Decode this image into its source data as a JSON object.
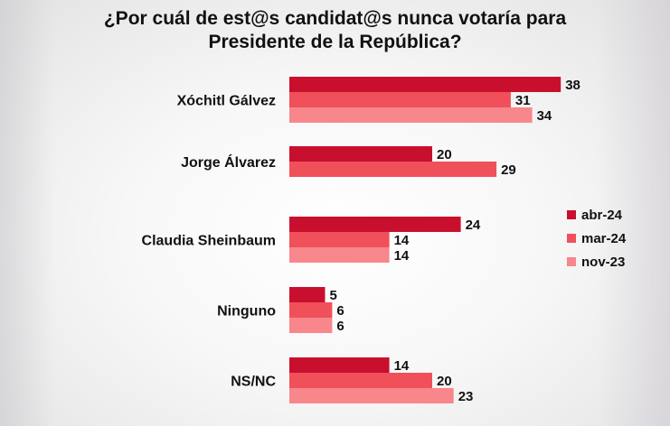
{
  "chart_data": {
    "type": "bar",
    "orientation": "horizontal",
    "title_line1": "¿Por cuál de est@s candidat@s nunca votaría para",
    "title_line2": "Presidente de la República?",
    "categories": [
      "Xóchitl Gálvez",
      "Jorge Álvarez",
      "Claudia Sheinbaum",
      "Ninguno",
      "NS/NC"
    ],
    "series": [
      {
        "name": "abr-24",
        "color": "#c8102e",
        "values": [
          38,
          20,
          24,
          5,
          14
        ]
      },
      {
        "name": "mar-24",
        "color": "#f0505a",
        "values": [
          31,
          29,
          14,
          6,
          20
        ]
      },
      {
        "name": "nov-23",
        "color": "#f8878c",
        "values": [
          34,
          null,
          14,
          6,
          23
        ]
      }
    ],
    "xlim": [
      0,
      40
    ],
    "grid": false,
    "legend_position": "right"
  }
}
